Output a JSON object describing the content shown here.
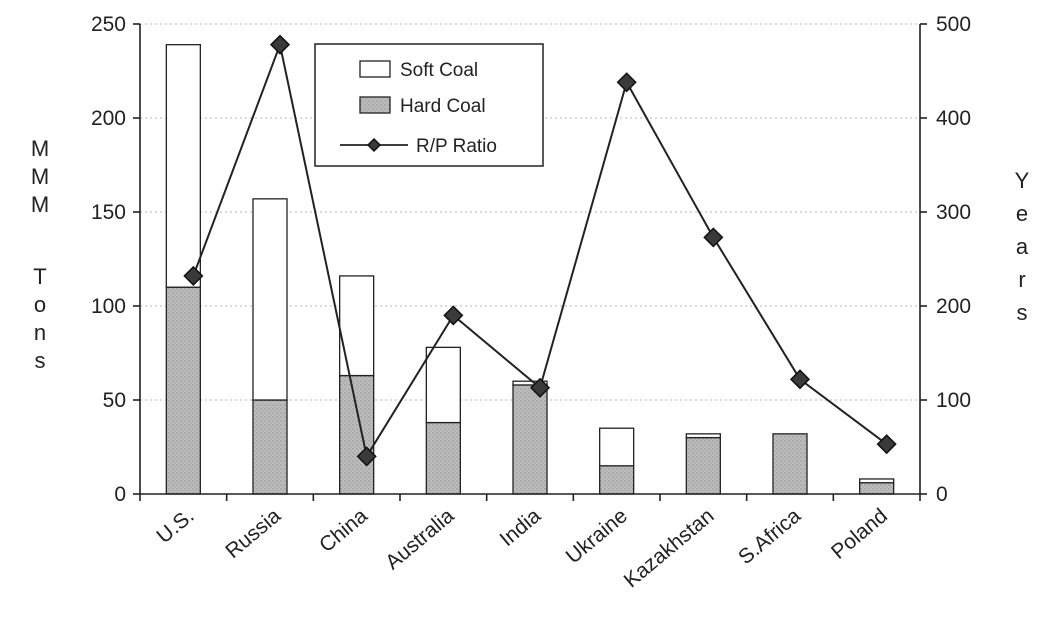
{
  "chart_data": {
    "type": "bar",
    "categories": [
      "U.S.",
      "Russia",
      "China",
      "Australia",
      "India",
      "Ukraine",
      "Kazakhstan",
      "S.Africa",
      "Poland"
    ],
    "series": [
      {
        "name": "Hard Coal",
        "kind": "stacked-bar",
        "axis": "left",
        "color": "#b3b3b3",
        "values": [
          110,
          50,
          63,
          38,
          58,
          15,
          30,
          32,
          6
        ]
      },
      {
        "name": "Soft Coal",
        "kind": "stacked-bar",
        "axis": "left",
        "color": "#ffffff",
        "values": [
          129,
          107,
          53,
          40,
          2,
          20,
          2,
          0,
          2
        ]
      },
      {
        "name": "R/P Ratio",
        "kind": "line",
        "axis": "right",
        "color": "#222222",
        "values": [
          232,
          478,
          40,
          190,
          113,
          438,
          273,
          122,
          53
        ]
      }
    ],
    "legend": [
      "Soft Coal",
      "Hard Coal",
      "R/P Ratio"
    ],
    "legend_position": "top-center",
    "ylabel": "MMM Tons",
    "ylabel_letters": [
      "M",
      "M",
      "M",
      "T",
      "o",
      "n",
      "s"
    ],
    "y2label": "Years",
    "y2label_letters": [
      "Y",
      "e",
      "a",
      "r",
      "s"
    ],
    "ylim": [
      0,
      250
    ],
    "y2lim": [
      0,
      500
    ],
    "yticks": [
      0,
      50,
      100,
      150,
      200,
      250
    ],
    "y2ticks": [
      0,
      100,
      200,
      300,
      400,
      500
    ],
    "grid": "horizontal dotted"
  }
}
